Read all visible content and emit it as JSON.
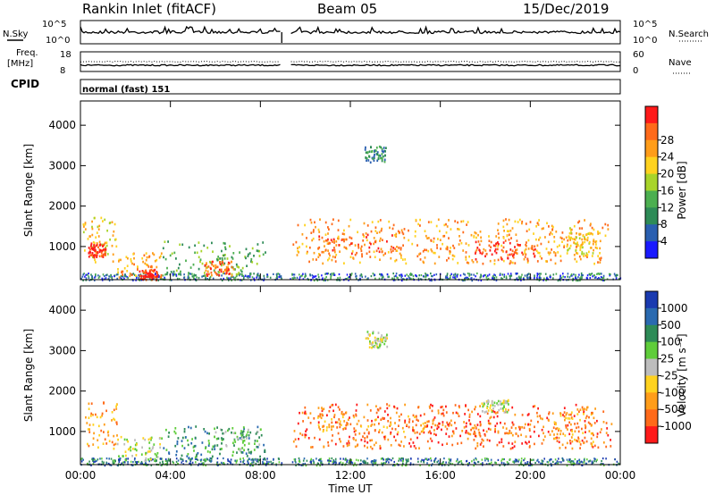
{
  "header": {
    "station": "Rankin Inlet (fitACF)",
    "beam": "Beam 05",
    "date": "15/Dec/2019"
  },
  "aux_labels": {
    "nsky": "N.Sky",
    "freq": "Freq.",
    "freq_unit": "[MHz]",
    "cpid": "CPID",
    "nsearch": "N.Search",
    "nave": "Nave",
    "nsky_ticks": [
      "10^5",
      "10^0"
    ],
    "nsearch_ticks": [
      "10^5",
      "10^0"
    ],
    "freq_ticks": [
      "18",
      "8"
    ],
    "nave_ticks": [
      "60",
      "0"
    ],
    "cpid_text": "normal (fast) 151"
  },
  "colors": {
    "power": [
      "#1a1aff",
      "#2a5fb0",
      "#2e8b57",
      "#4caf50",
      "#a8d42a",
      "#ffd21f",
      "#ff9d1a",
      "#ff6a1a",
      "#ff1a1a"
    ],
    "velocity": [
      "#1a3ab0",
      "#2a6ab0",
      "#2e8b57",
      "#5fcd3a",
      "#bdbdbd",
      "#ffd21f",
      "#ff9d1a",
      "#ff6a1a",
      "#ff1a1a"
    ]
  },
  "chart_data": [
    {
      "type": "heatmap",
      "name": "power",
      "xlabel": "",
      "ylabel": "Slant Range [km]",
      "xlim": [
        0,
        24
      ],
      "ylim": [
        180,
        4600
      ],
      "yticks": [
        "1000",
        "2000",
        "3000",
        "4000"
      ],
      "colorbar": {
        "label": "Power [dB]",
        "ticks": [
          "4",
          "8",
          "12",
          "16",
          "20",
          "24",
          "28"
        ]
      },
      "regions": [
        {
          "t0": 0.1,
          "t1": 1.6,
          "r0": 600,
          "r1": 1750,
          "lvl": 5
        },
        {
          "t0": 0.3,
          "t1": 1.1,
          "r0": 750,
          "r1": 1100,
          "lvl": 8
        },
        {
          "t0": 1.6,
          "t1": 3.6,
          "r0": 250,
          "r1": 900,
          "lvl": 6
        },
        {
          "t0": 2.6,
          "t1": 3.4,
          "r0": 200,
          "r1": 450,
          "lvl": 8
        },
        {
          "t0": 3.6,
          "t1": 8.2,
          "r0": 300,
          "r1": 1150,
          "lvl": 3
        },
        {
          "t0": 5.5,
          "t1": 6.8,
          "r0": 300,
          "r1": 650,
          "lvl": 7
        },
        {
          "t0": 9.4,
          "t1": 23.6,
          "r0": 600,
          "r1": 1700,
          "lvl": 6
        },
        {
          "t0": 10.5,
          "t1": 14.0,
          "r0": 850,
          "r1": 1350,
          "lvl": 7
        },
        {
          "t0": 17.5,
          "t1": 20.2,
          "r0": 700,
          "r1": 1150,
          "lvl": 8
        },
        {
          "t0": 21.5,
          "t1": 23.0,
          "r0": 800,
          "r1": 1500,
          "lvl": 5
        },
        {
          "t0": 12.6,
          "t1": 13.6,
          "r0": 3100,
          "r1": 3500,
          "lvl": 2
        }
      ]
    },
    {
      "type": "heatmap",
      "name": "velocity",
      "xlabel": "Time UT",
      "ylabel": "Slant Range [km]",
      "xlim": [
        0,
        24
      ],
      "ylim": [
        180,
        4600
      ],
      "xticks": [
        "00:00",
        "04:00",
        "08:00",
        "12:00",
        "16:00",
        "20:00",
        "00:00"
      ],
      "yticks": [
        "1000",
        "2000",
        "3000",
        "4000"
      ],
      "colorbar": {
        "label": "Velocity [m s⁻¹]",
        "ticks": [
          "1000",
          "500",
          "100",
          "25",
          "-25",
          "-100",
          "-500",
          "-1000"
        ]
      },
      "regions": [
        {
          "t0": 0.1,
          "t1": 1.6,
          "r0": 600,
          "r1": 1750,
          "lvl": 6
        },
        {
          "t0": 1.6,
          "t1": 3.6,
          "r0": 300,
          "r1": 900,
          "lvl": 4
        },
        {
          "t0": 3.6,
          "t1": 8.2,
          "r0": 300,
          "r1": 1150,
          "lvl": 2
        },
        {
          "t0": 5.5,
          "t1": 8.0,
          "r0": 500,
          "r1": 1100,
          "lvl": 3
        },
        {
          "t0": 9.4,
          "t1": 23.6,
          "r0": 600,
          "r1": 1700,
          "lvl": 7
        },
        {
          "t0": 10.5,
          "t1": 15.5,
          "r0": 1000,
          "r1": 1500,
          "lvl": 6
        },
        {
          "t0": 15.0,
          "t1": 20.0,
          "r0": 900,
          "r1": 1300,
          "lvl": 7
        },
        {
          "t0": 17.8,
          "t1": 19.0,
          "r0": 1500,
          "r1": 1800,
          "lvl": 4
        },
        {
          "t0": 21.0,
          "t1": 22.8,
          "r0": 700,
          "r1": 1500,
          "lvl": 6
        },
        {
          "t0": 12.6,
          "t1": 13.6,
          "r0": 3100,
          "r1": 3500,
          "lvl": 4
        }
      ]
    }
  ]
}
